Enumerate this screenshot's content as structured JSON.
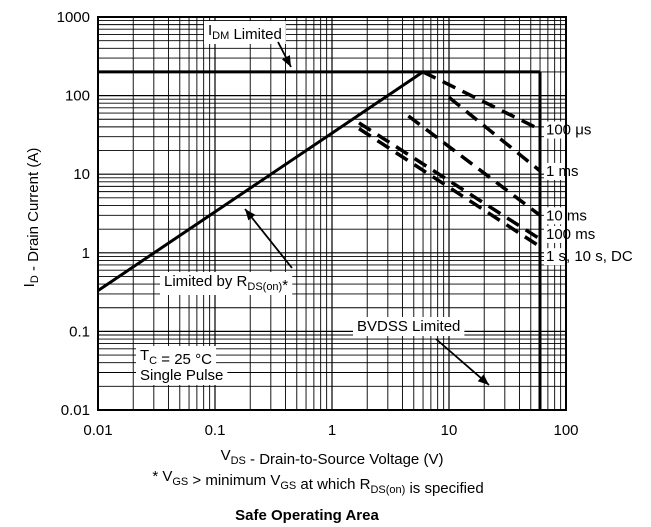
{
  "chart_data": {
    "type": "line",
    "title": "Safe Operating Area",
    "xlabel": {
      "pre": "V",
      "sub": "DS",
      "post": " - Drain-to-Source Voltage (V)"
    },
    "ylabel": {
      "pre": "I",
      "sub": "D",
      "post": " - Drain Current (A)"
    },
    "footnote": {
      "parts": [
        {
          "t": "* V"
        },
        {
          "t": "GS",
          "sub": true
        },
        {
          "t": " > minimum V"
        },
        {
          "t": "GS",
          "sub": true
        },
        {
          "t": " at which R"
        },
        {
          "t": "DS(on)",
          "sub": true
        },
        {
          "t": " is specified"
        }
      ]
    },
    "x_scale": "log",
    "y_scale": "log",
    "xlim": [
      0.01,
      100
    ],
    "ylim": [
      0.01,
      1000
    ],
    "x_ticks": [
      "0.01",
      "0.1",
      "1",
      "10",
      "100"
    ],
    "y_ticks": [
      "0.01",
      "0.1",
      "1",
      "10",
      "100",
      "1000"
    ],
    "grid": true,
    "series": [
      {
        "name": "",
        "style": "solid",
        "x": [
          0.01,
          6
        ],
        "y": [
          0.33,
          200
        ]
      },
      {
        "name": "",
        "style": "solid",
        "x": [
          0.01,
          60
        ],
        "y": [
          200,
          200
        ]
      },
      {
        "name": "",
        "style": "solid",
        "x": [
          60,
          60
        ],
        "y": [
          0.01,
          200
        ]
      },
      {
        "name": "100 μs",
        "style": "dashed",
        "x": [
          6,
          60
        ],
        "y": [
          200,
          37
        ]
      },
      {
        "name": "1 ms",
        "style": "dashed",
        "x": [
          10,
          60
        ],
        "y": [
          95,
          11
        ]
      },
      {
        "name": "10 ms",
        "style": "dashed",
        "x": [
          4.5,
          60
        ],
        "y": [
          55,
          3
        ]
      },
      {
        "name": "100 ms",
        "style": "dashed",
        "x": [
          1.7,
          60
        ],
        "y": [
          45,
          1.5
        ]
      },
      {
        "name": "1 s, 10 s, DC",
        "style": "dashed",
        "x": [
          1.7,
          60
        ],
        "y": [
          38,
          1.2
        ]
      }
    ],
    "annotations": [
      {
        "parts": [
          {
            "t": "I"
          },
          {
            "t": "DM",
            "sub": true
          },
          {
            "t": " Limited"
          }
        ]
      },
      {
        "parts": [
          {
            "t": "Limited by R"
          },
          {
            "t": "DS(on)",
            "sub": true
          },
          {
            "t": "*"
          }
        ]
      },
      {
        "parts": [
          {
            "t": "T"
          },
          {
            "t": "C",
            "sub": true
          },
          {
            "t": " = 25 °C"
          }
        ]
      },
      {
        "parts": [
          {
            "t": "Single Pulse"
          }
        ]
      },
      {
        "parts": [
          {
            "t": "BVDSS Limited"
          }
        ]
      }
    ]
  }
}
